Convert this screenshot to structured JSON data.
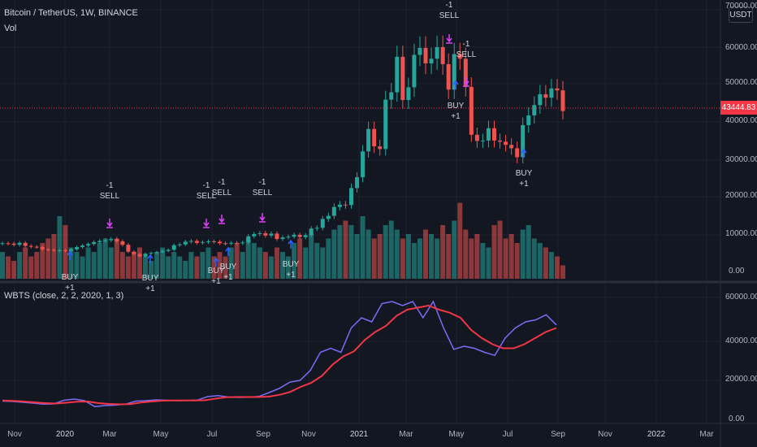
{
  "header": {
    "symbol_line": "Bitcoin / TetherUS, 1W, BINANCE",
    "volume_label": "Vol",
    "indicator_label": "WBTS (close, 2, 2, 2020, 1, 3)"
  },
  "price_axis": {
    "currency_button": "USDT",
    "ticks": [
      "60000.00",
      "50000.00",
      "40000.00",
      "30000.00",
      "20000.00",
      "10000.00",
      "0.00"
    ],
    "top_tick": "70000.00",
    "last_price": "43444.83",
    "last_price_color": "#f23645"
  },
  "indicator_axis": {
    "ticks": [
      "60000.00",
      "40000.00",
      "20000.00",
      "0.00"
    ]
  },
  "time_axis": {
    "labels": [
      "Nov",
      "2020",
      "Mar",
      "May",
      "Jul",
      "Sep",
      "Nov",
      "2021",
      "Mar",
      "May",
      "Jul",
      "Sep",
      "Nov",
      "2022",
      "Mar"
    ]
  },
  "signals": {
    "sell_text": "SELL",
    "sell_qty": "-1",
    "buy_text": "BUY",
    "buy_qty": "+1"
  },
  "colors": {
    "up": "#26a69a",
    "down": "#ef5350",
    "sell_arrow": "#e040fb",
    "buy_arrow": "#2962ff",
    "wbts_fast": "#7b6cf6",
    "wbts_slow": "#f23645",
    "background": "#131722",
    "grid": "#1e222d"
  },
  "chart_data": [
    {
      "type": "candlestick",
      "title": "Bitcoin / TetherUS, 1W, BINANCE",
      "x_range": [
        "2019-10",
        "2022-03"
      ],
      "ylim": [
        0,
        70000
      ],
      "close_series_approx": [
        9200,
        9100,
        8800,
        9300,
        8500,
        8300,
        8200,
        7600,
        7500,
        7300,
        7400,
        7200,
        7600,
        8200,
        8600,
        9000,
        9500,
        9800,
        10000,
        10300,
        9700,
        8800,
        7000,
        6400,
        5800,
        6500,
        6700,
        6900,
        7200,
        7500,
        8700,
        8900,
        9600,
        9800,
        9300,
        9500,
        9700,
        9600,
        9200,
        9100,
        9300,
        9200,
        9400,
        11000,
        11600,
        11800,
        11200,
        11700,
        10300,
        10700,
        10900,
        11400,
        10800,
        11300,
        13000,
        13200,
        15500,
        16300,
        18600,
        19200,
        19100,
        23500,
        26300,
        33000,
        38800,
        34300,
        33600,
        46400,
        48300,
        57500,
        46300,
        49600,
        58000,
        59800,
        55800,
        57000,
        60000,
        55600,
        49000,
        58200,
        57000,
        49700,
        37300,
        35700,
        35800,
        39000,
        35800,
        35500,
        34700,
        33800,
        31500,
        39800,
        42300,
        45000,
        47800,
        46900,
        49300,
        48800,
        43444.83
      ],
      "volume_max_approx": 17000
    },
    {
      "type": "line",
      "title": "WBTS (close, 2, 2, 2020, 1, 3)",
      "ylim": [
        0,
        65000
      ],
      "series": [
        {
          "values": [
            9000,
            8800,
            8400,
            8000,
            7500,
            7600,
            9400,
            10000,
            9200,
            6300,
            6800,
            7000,
            7500,
            9000,
            9200,
            9600,
            9400,
            9200,
            9300,
            9500,
            11200,
            11700,
            11000,
            10800,
            10900,
            11300,
            13200,
            15300,
            18300,
            19200,
            24000,
            33000,
            35000,
            33000,
            45000,
            50000,
            48000,
            57000,
            58000,
            56000,
            58000,
            50000,
            58000,
            45000,
            34500,
            36000,
            35000,
            33000,
            31500,
            40000,
            45000,
            48000,
            49000,
            51500,
            46500
          ]
        },
        {
          "values": [
            9300,
            9100,
            8800,
            8400,
            8000,
            7800,
            8200,
            8700,
            8800,
            8000,
            7600,
            7400,
            7500,
            8300,
            8800,
            9200,
            9300,
            9300,
            9300,
            9400,
            10200,
            10900,
            11000,
            11000,
            11000,
            11200,
            12100,
            13500,
            16000,
            18000,
            21500,
            27000,
            31000,
            33500,
            39000,
            43000,
            46000,
            51000,
            54000,
            55000,
            56000,
            54000,
            52500,
            50000,
            44000,
            40000,
            37000,
            35000,
            35000,
            37000,
            40000,
            43000,
            45000
          ]
        }
      ]
    }
  ]
}
